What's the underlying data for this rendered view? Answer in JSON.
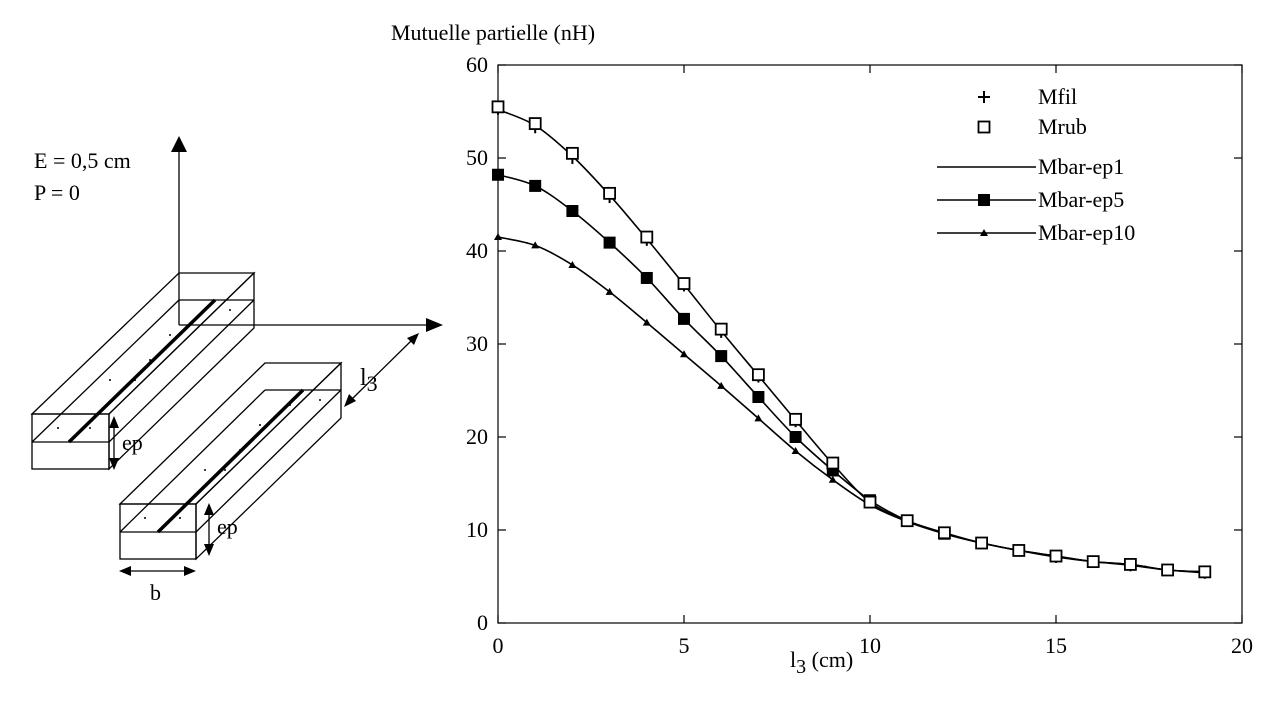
{
  "diagram": {
    "e_label": "E = 0,5 cm",
    "p_label": "P = 0",
    "ep_label_1": "ep",
    "ep_label_2": "ep",
    "b_label": "b",
    "l3_label": "l",
    "l3_sub": "3"
  },
  "chart_data": {
    "type": "line",
    "ylabel": "Mutuelle partielle (nH)",
    "xlabel_main": "l",
    "xlabel_sub": "3",
    "xlabel_tail": " (cm)",
    "xlim": [
      0,
      20
    ],
    "ylim": [
      0,
      60
    ],
    "x_ticks": [
      0,
      5,
      10,
      15,
      20
    ],
    "y_ticks": [
      0,
      10,
      20,
      30,
      40,
      50,
      60
    ],
    "grid": false,
    "legend_position": "top-right",
    "x": [
      0,
      1,
      2,
      3,
      4,
      5,
      6,
      7,
      8,
      9,
      10,
      11,
      12,
      13,
      14,
      15,
      16,
      17,
      18,
      19
    ],
    "series": [
      {
        "name": "Mfil",
        "marker": "plus",
        "line": false,
        "values": [
          55.3,
          53.3,
          50.0,
          45.8,
          41.2,
          36.3,
          31.3,
          26.5,
          21.7,
          17.0,
          13.0,
          11.0,
          9.7,
          8.6,
          7.8,
          7.1,
          6.6,
          6.2,
          5.7,
          5.4
        ]
      },
      {
        "name": "Mrub",
        "marker": "open-square",
        "line": false,
        "values": [
          55.5,
          53.7,
          50.5,
          46.2,
          41.5,
          36.5,
          31.6,
          26.7,
          21.9,
          17.2,
          13.0,
          11.0,
          9.7,
          8.6,
          7.8,
          7.2,
          6.6,
          6.3,
          5.7,
          5.5
        ]
      },
      {
        "name": "Mbar-ep1",
        "marker": "none",
        "line": true,
        "values": [
          55.2,
          53.5,
          50.2,
          46.0,
          41.3,
          36.4,
          31.4,
          26.6,
          21.8,
          17.1,
          13.0,
          11.0,
          9.7,
          8.6,
          7.8,
          7.1,
          6.6,
          6.2,
          5.7,
          5.4
        ]
      },
      {
        "name": "Mbar-ep5",
        "marker": "filled-square",
        "line": true,
        "values": [
          48.2,
          47.0,
          44.3,
          40.9,
          37.1,
          32.7,
          28.7,
          24.3,
          20.0,
          16.4,
          13.2,
          11.0,
          9.6,
          8.6,
          7.8,
          7.2,
          6.6,
          6.3,
          5.7,
          5.5
        ]
      },
      {
        "name": "Mbar-ep10",
        "marker": "filled-triangle",
        "line": true,
        "values": [
          41.5,
          40.6,
          38.5,
          35.6,
          32.3,
          28.9,
          25.5,
          22.0,
          18.5,
          15.4,
          12.7,
          10.9,
          9.6,
          8.6,
          7.8,
          7.2,
          6.6,
          6.3,
          5.7,
          5.5
        ]
      }
    ]
  }
}
